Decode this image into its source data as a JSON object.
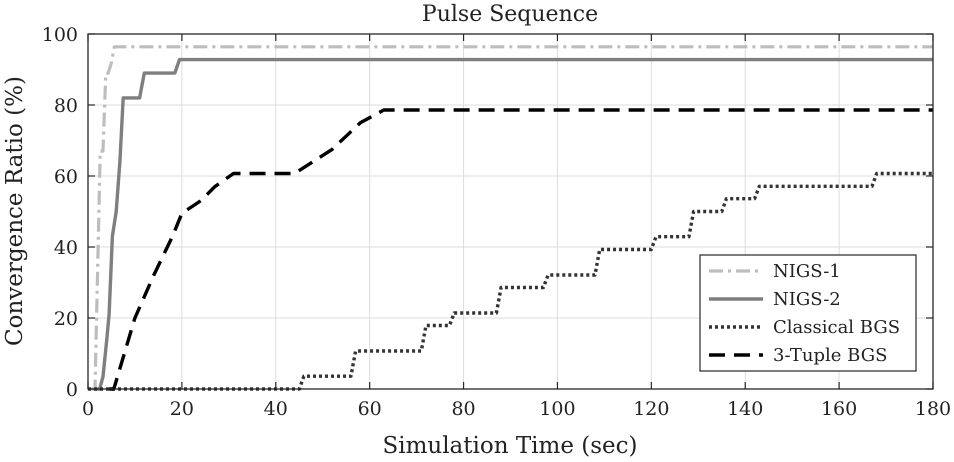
{
  "chart_data": {
    "type": "line",
    "title": "Pulse Sequence",
    "xlabel": "Simulation Time (sec)",
    "ylabel": "Convergence Ratio (%)",
    "xlim": [
      0,
      180
    ],
    "ylim": [
      0,
      100
    ],
    "xticks": [
      0,
      20,
      40,
      60,
      80,
      100,
      120,
      140,
      160,
      180
    ],
    "yticks": [
      0,
      20,
      40,
      60,
      80,
      100
    ],
    "grid": true,
    "legend_position": "bottom-right",
    "series": [
      {
        "name": "NIGS-1",
        "style": "dash-dot",
        "color": "#bdbdbd",
        "x": [
          0.5,
          1.5,
          2.2,
          2.6,
          3.2,
          3.8,
          4.3,
          5.0,
          5.6,
          180
        ],
        "y": [
          0,
          0,
          42,
          67,
          67,
          89,
          89,
          92,
          96.4,
          96.4
        ]
      },
      {
        "name": "NIGS-2",
        "style": "solid",
        "color": "#7f7f7f",
        "x": [
          1.5,
          2.5,
          3.2,
          4.0,
          4.5,
          5.2,
          6.0,
          6.8,
          7.5,
          8.5,
          11.0,
          12.0,
          13.0,
          18.5,
          19.5,
          20.0,
          180
        ],
        "y": [
          0,
          0,
          3.5,
          14,
          21,
          43,
          50,
          64,
          82,
          82,
          82,
          89,
          89,
          89,
          92.8,
          92.8,
          92.8
        ]
      },
      {
        "name": "Classical BGS",
        "style": "dotted",
        "color": "#333333",
        "x": [
          0,
          45,
          46,
          56,
          57,
          71,
          72,
          77,
          78,
          87,
          88,
          97,
          98,
          108,
          109,
          120,
          121,
          128,
          129,
          135,
          136,
          142,
          143,
          167,
          168,
          180
        ],
        "y": [
          0,
          0,
          3.6,
          3.6,
          10.7,
          10.7,
          17.9,
          17.9,
          21.4,
          21.4,
          28.6,
          28.6,
          32.1,
          32.1,
          39.3,
          39.3,
          42.9,
          42.9,
          50,
          50,
          53.6,
          53.6,
          57.1,
          57.1,
          60.7,
          60.7
        ]
      },
      {
        "name": "3-Tuple BGS",
        "style": "dashed",
        "color": "#000000",
        "x": [
          4.5,
          5.5,
          10,
          14,
          18,
          20,
          24,
          27,
          31,
          40,
          44,
          52,
          58,
          63,
          180
        ],
        "y": [
          0,
          0,
          20,
          32,
          43,
          49.5,
          53,
          57,
          60.7,
          60.7,
          60.7,
          67.5,
          75,
          78.6,
          78.6
        ]
      }
    ]
  }
}
